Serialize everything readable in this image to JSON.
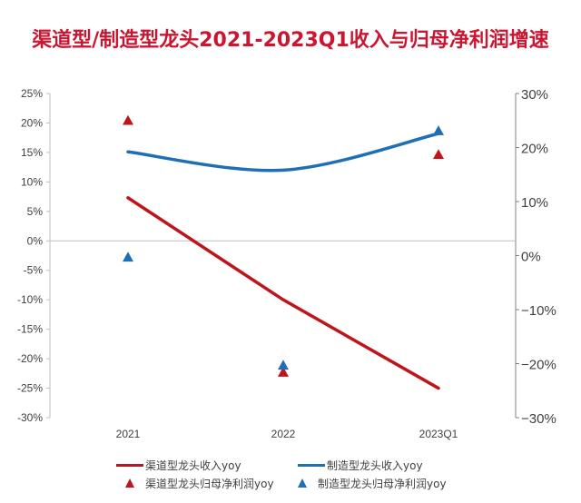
{
  "chart_data": {
    "type": "line",
    "title": "渠道型/制造型龙头2021-2023Q1收入与归母净利润增速",
    "categories": [
      "2021",
      "2022",
      "2023Q1"
    ],
    "left_axis": {
      "ylim": [
        -30,
        25
      ],
      "ticks": [
        25,
        20,
        15,
        10,
        5,
        0,
        -5,
        -10,
        -15,
        -20,
        -25,
        -30
      ],
      "tick_labels": [
        "25%",
        "20%",
        "15%",
        "10%",
        "5%",
        "0%",
        "-5%",
        "-10%",
        "-15%",
        "-20%",
        "-25%",
        "-30%"
      ]
    },
    "right_axis": {
      "ylim": [
        -30,
        30
      ],
      "ticks": [
        30,
        20,
        10,
        0,
        -10,
        -20,
        -30
      ],
      "tick_labels": [
        "30%",
        "20%",
        "10%",
        "0%",
        "−10%",
        "−20%",
        "−30%"
      ]
    },
    "series": [
      {
        "name": "渠道型龙头收入yoy",
        "type": "line",
        "axis": "left",
        "color": "#c0141c",
        "values": [
          7.3,
          -10.0,
          -25.0
        ]
      },
      {
        "name": "制造型龙头收入yoy",
        "type": "line",
        "axis": "left",
        "smooth": true,
        "color": "#1e6fb5",
        "values": [
          15.1,
          12.0,
          18.2
        ]
      },
      {
        "name": "渠道型龙头归母净利润yoy",
        "type": "scatter",
        "marker": "triangle",
        "axis": "right",
        "color": "#c0141c",
        "values": [
          25.0,
          -21.6,
          18.7
        ]
      },
      {
        "name": "制造型龙头归母净利润yoy",
        "type": "scatter",
        "marker": "triangle",
        "axis": "right",
        "color": "#1e6fb5",
        "values": [
          -0.3,
          -20.3,
          23.1
        ]
      }
    ],
    "legend_position": "bottom",
    "grid": false
  }
}
